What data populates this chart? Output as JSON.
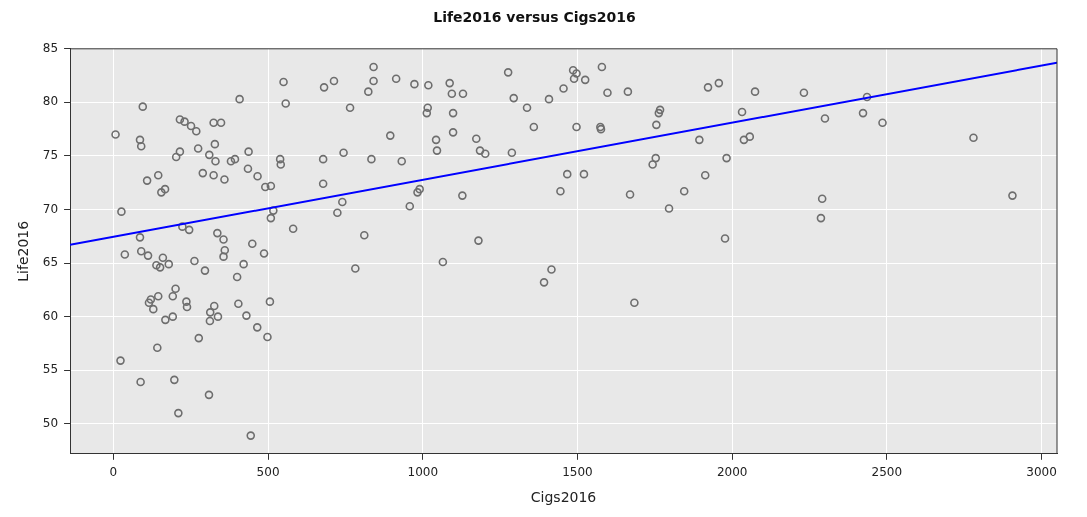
{
  "chart_data": {
    "type": "scatter",
    "title": "Life2016 versus Cigs2016",
    "xlabel": "Cigs2016",
    "ylabel": "Life2016",
    "xlim": [
      -140,
      3050
    ],
    "ylim": [
      47.2,
      85
    ],
    "xticks": [
      0,
      500,
      1000,
      1500,
      2000,
      2500,
      3000
    ],
    "yticks": [
      50,
      55,
      60,
      65,
      70,
      75,
      80,
      85
    ],
    "grid": true,
    "marker": "circle",
    "series": [
      {
        "color": "#6e6e6e",
        "x": [
          7,
          95,
          215,
          230,
          251,
          268,
          324,
          348,
          86,
          90,
          215,
          203,
          274,
          310,
          328,
          330,
          289,
          324,
          359,
          109,
          145,
          167,
          155,
          26,
          223,
          245,
          336,
          356,
          86,
          37,
          90,
          112,
          160,
          139,
          151,
          179,
          262,
          296,
          360,
          356,
          201,
          192,
          145,
          121,
          115,
          129,
          236,
          238,
          326,
          313,
          312,
          338,
          192,
          168,
          276,
          142,
          23,
          88,
          197,
          309,
          210,
          408,
          550,
          557,
          681,
          713,
          765,
          824,
          841,
          841,
          380,
          393,
          437,
          435,
          466,
          491,
          509,
          539,
          541,
          678,
          678,
          744,
          834,
          740,
          724,
          517,
          509,
          581,
          811,
          449,
          487,
          421,
          782,
          400,
          506,
          404,
          430,
          465,
          498,
          444,
          914,
          973,
          1018,
          1087,
          1094,
          1130,
          1016,
          1013,
          1098,
          1276,
          1294,
          1337,
          1408,
          1455,
          895,
          1098,
          1043,
          1046,
          1173,
          1185,
          1202,
          1288,
          1359,
          932,
          958,
          983,
          990,
          1128,
          1467,
          1445,
          1180,
          1065,
          1416,
          1392,
          1486,
          1497,
          1489,
          1525,
          1579,
          1597,
          1663,
          1497,
          1574,
          1576,
          1521,
          1670,
          1684,
          1767,
          1763,
          1755,
          1753,
          1743,
          1894,
          1796,
          1845,
          1913,
          1922,
          1957,
          1982,
          1977,
          2032,
          2038,
          2057,
          2074,
          2232,
          2300,
          2436,
          2423,
          2486,
          2780,
          2291,
          2287,
          2906
        ],
        "values": [
          77.0,
          79.6,
          78.4,
          78.2,
          77.8,
          77.3,
          78.1,
          78.1,
          76.5,
          75.9,
          75.4,
          74.9,
          75.7,
          75.1,
          76.1,
          74.5,
          73.4,
          73.2,
          72.8,
          72.7,
          73.2,
          71.9,
          71.6,
          69.8,
          68.4,
          68.1,
          67.8,
          67.2,
          67.4,
          65.8,
          66.1,
          65.7,
          65.5,
          64.8,
          64.6,
          64.9,
          65.2,
          64.3,
          66.2,
          65.6,
          62.6,
          61.9,
          61.9,
          61.6,
          61.3,
          60.7,
          61.4,
          60.9,
          61.0,
          60.4,
          59.6,
          60.0,
          60.0,
          59.7,
          58.0,
          57.1,
          55.9,
          53.9,
          54.1,
          52.7,
          51.0,
          80.3,
          81.9,
          79.9,
          81.4,
          82.0,
          79.5,
          81.0,
          83.3,
          82.0,
          74.5,
          74.7,
          75.4,
          73.8,
          73.1,
          72.1,
          72.2,
          74.7,
          74.2,
          74.7,
          72.4,
          75.3,
          74.7,
          70.7,
          69.7,
          69.9,
          69.2,
          68.2,
          67.6,
          66.8,
          65.9,
          64.9,
          64.5,
          63.7,
          61.4,
          61.2,
          60.1,
          59.0,
          58.1,
          48.9,
          82.2,
          81.7,
          81.6,
          81.8,
          80.8,
          80.8,
          79.5,
          79.0,
          79.0,
          82.8,
          80.4,
          79.5,
          80.3,
          81.3,
          76.9,
          77.2,
          76.5,
          75.5,
          76.6,
          75.5,
          75.2,
          75.3,
          77.7,
          74.5,
          70.3,
          71.6,
          71.9,
          71.3,
          73.3,
          71.7,
          67.1,
          65.1,
          64.4,
          63.2,
          83.0,
          82.7,
          82.2,
          82.1,
          83.3,
          80.9,
          81.0,
          77.7,
          77.7,
          77.5,
          73.3,
          71.4,
          61.3,
          79.3,
          79.0,
          77.9,
          74.8,
          74.2,
          76.5,
          70.1,
          71.7,
          73.2,
          81.4,
          81.8,
          74.8,
          67.3,
          79.1,
          76.5,
          76.8,
          81.0,
          80.9,
          78.5,
          80.5,
          79.0,
          78.1,
          76.7,
          71.0,
          69.2,
          71.3
        ]
      },
      {
        "type": "line",
        "marker": "none",
        "color": "#0000ff",
        "x": [
          -140,
          3050
        ],
        "values": [
          66.7,
          83.7
        ]
      }
    ]
  }
}
